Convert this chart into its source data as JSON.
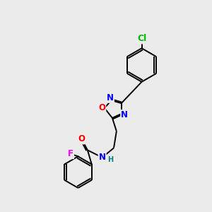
{
  "background_color": "#ebebeb",
  "bond_color": "#000000",
  "atom_colors": {
    "O": "#ff0000",
    "N": "#0000ff",
    "Cl": "#00bb00",
    "F": "#ff00ff",
    "H": "#008080",
    "C": "#000000"
  },
  "bond_lw": 1.4,
  "font_size_atom": 8.5,
  "font_size_small": 7.0
}
